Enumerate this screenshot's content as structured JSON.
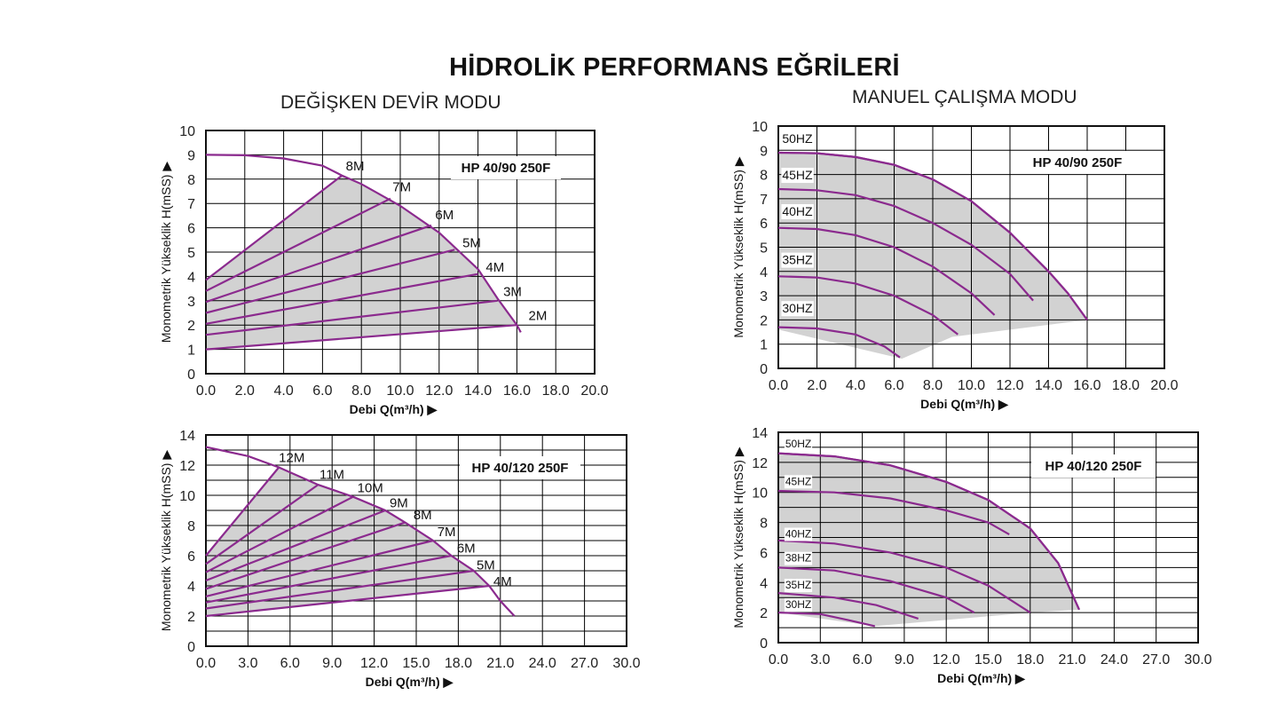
{
  "page": {
    "title": "HİDROLİK PERFORMANS EĞRİLERİ",
    "left_mode_title": "DEĞİŞKEN DEVİR MODU",
    "right_mode_title": "MANUEL ÇALIŞMA MODU"
  },
  "colors": {
    "curve": "#8b2a8e",
    "fill": "#d2d2d2",
    "grid": "#000000"
  },
  "chart_data": [
    {
      "id": "c1",
      "type": "line",
      "model": "HP 40/90 250F",
      "xlabel": "Debi Q(m³/h) ▶",
      "ylabel": "Monometrik Yükseklik H(mSS) ▶",
      "xlim": [
        0,
        20
      ],
      "ylim": [
        0,
        10
      ],
      "xticks": [
        0,
        2,
        4,
        6,
        8,
        10,
        12,
        14,
        16,
        18,
        20
      ],
      "xtick_decimals": 1,
      "yticks": [
        0,
        1,
        2,
        3,
        4,
        5,
        6,
        7,
        8,
        9,
        10
      ],
      "ytick_decimals": 0,
      "grid": true,
      "envelope": [
        [
          0,
          9
        ],
        [
          2,
          8.98
        ],
        [
          4,
          8.85
        ],
        [
          6,
          8.55
        ],
        [
          7,
          8.15
        ],
        [
          8,
          7.8
        ],
        [
          10,
          6.9
        ],
        [
          12,
          5.8
        ],
        [
          14,
          4.3
        ],
        [
          15,
          3.1
        ],
        [
          16,
          2
        ],
        [
          16.2,
          1.7
        ]
      ],
      "region": [
        [
          0,
          1
        ],
        [
          16,
          2
        ],
        [
          15,
          3.1
        ],
        [
          14,
          4.3
        ],
        [
          12,
          5.8
        ],
        [
          10,
          6.9
        ],
        [
          8,
          7.8
        ],
        [
          7,
          8.15
        ],
        [
          0,
          3.85
        ]
      ],
      "series": [
        {
          "name": "8M",
          "values": [
            [
              0,
              3.85
            ],
            [
              7,
              8.15
            ]
          ]
        },
        {
          "name": "7M",
          "values": [
            [
              0,
              3.4
            ],
            [
              9.5,
              7.2
            ]
          ]
        },
        {
          "name": "6M",
          "values": [
            [
              0,
              2.95
            ],
            [
              11.6,
              6.1
            ]
          ]
        },
        {
          "name": "5M",
          "values": [
            [
              0,
              2.5
            ],
            [
              12.8,
              5.1
            ]
          ]
        },
        {
          "name": "4M",
          "values": [
            [
              0,
              2.05
            ],
            [
              14,
              4.1
            ]
          ]
        },
        {
          "name": "3M",
          "values": [
            [
              0,
              1.6
            ],
            [
              15,
              3
            ]
          ]
        },
        {
          "name": "2M",
          "values": [
            [
              0,
              1
            ],
            [
              16,
              2
            ]
          ]
        }
      ],
      "series_labels": [
        {
          "text": "8M",
          "x": 7.2,
          "y": 8.35
        },
        {
          "text": "7M",
          "x": 9.6,
          "y": 7.5
        },
        {
          "text": "6M",
          "x": 11.8,
          "y": 6.35
        },
        {
          "text": "5M",
          "x": 13.2,
          "y": 5.2
        },
        {
          "text": "4M",
          "x": 14.4,
          "y": 4.2
        },
        {
          "text": "3M",
          "x": 15.3,
          "y": 3.2
        },
        {
          "text": "2M",
          "x": 16.6,
          "y": 2.2
        }
      ]
    },
    {
      "id": "c2",
      "type": "line",
      "model": "HP 40/90 250F",
      "xlabel": "Debi Q(m³/h) ▶",
      "ylabel": "Monometrik Yükseklik H(mSS) ▶",
      "xlim": [
        0,
        20
      ],
      "ylim": [
        0,
        10
      ],
      "xticks": [
        0,
        2,
        4,
        6,
        8,
        10,
        12,
        14,
        16,
        18,
        20
      ],
      "xtick_decimals": 1,
      "yticks": [
        0,
        1,
        2,
        3,
        4,
        5,
        6,
        7,
        8,
        9,
        10
      ],
      "ytick_decimals": 0,
      "grid": true,
      "envelope": [
        [
          0,
          8.9
        ],
        [
          2,
          8.88
        ],
        [
          4,
          8.72
        ],
        [
          6,
          8.4
        ],
        [
          8,
          7.8
        ],
        [
          10,
          6.9
        ],
        [
          12,
          5.6
        ],
        [
          14,
          4
        ],
        [
          15,
          3.1
        ],
        [
          16,
          2
        ]
      ],
      "region": [
        [
          0,
          8.9
        ],
        [
          2,
          8.88
        ],
        [
          4,
          8.72
        ],
        [
          6,
          8.4
        ],
        [
          8,
          7.8
        ],
        [
          10,
          6.9
        ],
        [
          12,
          5.6
        ],
        [
          14,
          4
        ],
        [
          15,
          3.1
        ],
        [
          16,
          2
        ],
        [
          9,
          1.3
        ],
        [
          6.4,
          0.4
        ],
        [
          0,
          1.6
        ]
      ],
      "series": [
        {
          "name": "50HZ",
          "values": [
            [
              0,
              8.9
            ],
            [
              2,
              8.88
            ],
            [
              4,
              8.72
            ],
            [
              6,
              8.4
            ],
            [
              8,
              7.8
            ],
            [
              10,
              6.9
            ],
            [
              12,
              5.6
            ],
            [
              14,
              4
            ],
            [
              15,
              3.1
            ],
            [
              16,
              2
            ]
          ]
        },
        {
          "name": "45HZ",
          "values": [
            [
              0,
              7.4
            ],
            [
              2,
              7.35
            ],
            [
              4,
              7.15
            ],
            [
              6,
              6.7
            ],
            [
              8,
              6
            ],
            [
              10,
              5.1
            ],
            [
              12,
              3.9
            ],
            [
              13.2,
              2.8
            ]
          ]
        },
        {
          "name": "40HZ",
          "values": [
            [
              0,
              5.8
            ],
            [
              2,
              5.75
            ],
            [
              4,
              5.5
            ],
            [
              6,
              5
            ],
            [
              8,
              4.2
            ],
            [
              10,
              3.1
            ],
            [
              11.2,
              2.2
            ]
          ]
        },
        {
          "name": "35HZ",
          "values": [
            [
              0,
              3.8
            ],
            [
              2,
              3.75
            ],
            [
              4,
              3.5
            ],
            [
              6,
              3
            ],
            [
              8,
              2.2
            ],
            [
              9.3,
              1.4
            ]
          ]
        },
        {
          "name": "30HZ",
          "values": [
            [
              0,
              1.7
            ],
            [
              2,
              1.65
            ],
            [
              4,
              1.4
            ],
            [
              5.5,
              0.9
            ],
            [
              6.3,
              0.45
            ]
          ]
        }
      ],
      "series_labels": [
        {
          "text": "50HZ",
          "x": 0.2,
          "y": 9.3
        },
        {
          "text": "45HZ",
          "x": 0.2,
          "y": 7.8
        },
        {
          "text": "40HZ",
          "x": 0.2,
          "y": 6.3
        },
        {
          "text": "35HZ",
          "x": 0.2,
          "y": 4.3
        },
        {
          "text": "30HZ",
          "x": 0.2,
          "y": 2.3
        }
      ]
    },
    {
      "id": "c3",
      "type": "line",
      "model": "HP 40/120 250F",
      "xlabel": "Debi Q(m³/h) ▶",
      "ylabel": "Monometrik Yükseklik H(mSS) ▶",
      "xlim": [
        0,
        30
      ],
      "ylim": [
        0,
        14
      ],
      "xticks": [
        0,
        3,
        6,
        9,
        12,
        15,
        18,
        21,
        24,
        27,
        30
      ],
      "xtick_decimals": 1,
      "yticks": [
        0,
        2,
        4,
        6,
        8,
        10,
        12,
        14
      ],
      "ytick_decimals": 0,
      "grid": true,
      "envelope": [
        [
          0,
          13.2
        ],
        [
          3,
          12.6
        ],
        [
          5.2,
          11.85
        ],
        [
          8,
          10.7
        ],
        [
          10.5,
          9.9
        ],
        [
          12.8,
          9
        ],
        [
          14.2,
          8.2
        ],
        [
          16.2,
          7
        ],
        [
          17.5,
          6
        ],
        [
          19.1,
          5
        ],
        [
          20.2,
          4
        ],
        [
          21,
          3
        ],
        [
          22,
          2
        ]
      ],
      "region": [
        [
          0,
          2
        ],
        [
          20.2,
          4
        ],
        [
          19.1,
          5
        ],
        [
          17.5,
          6
        ],
        [
          16.2,
          7
        ],
        [
          14.2,
          8.2
        ],
        [
          12.8,
          9
        ],
        [
          10.5,
          9.9
        ],
        [
          8,
          10.7
        ],
        [
          5.2,
          11.85
        ],
        [
          0,
          6
        ]
      ],
      "series": [
        {
          "name": "12M",
          "values": [
            [
              0,
              6
            ],
            [
              5.2,
              11.85
            ]
          ]
        },
        {
          "name": "11M",
          "values": [
            [
              0,
              5.45
            ],
            [
              8,
              10.7
            ]
          ]
        },
        {
          "name": "10M",
          "values": [
            [
              0,
              4.9
            ],
            [
              10.5,
              9.9
            ]
          ]
        },
        {
          "name": "9M",
          "values": [
            [
              0,
              4.35
            ],
            [
              12.8,
              9
            ]
          ]
        },
        {
          "name": "8M",
          "values": [
            [
              0,
              3.8
            ],
            [
              14.2,
              8.2
            ]
          ]
        },
        {
          "name": "7M",
          "values": [
            [
              0,
              3.3
            ],
            [
              16.2,
              7
            ]
          ]
        },
        {
          "name": "6M",
          "values": [
            [
              0,
              2.9
            ],
            [
              17.5,
              6
            ]
          ]
        },
        {
          "name": "5M",
          "values": [
            [
              0,
              2.5
            ],
            [
              19.1,
              5
            ]
          ]
        },
        {
          "name": "4M",
          "values": [
            [
              0,
              2
            ],
            [
              20.2,
              4
            ]
          ]
        }
      ],
      "series_labels": [
        {
          "text": "12M",
          "x": 5.2,
          "y": 12.2
        },
        {
          "text": "11M",
          "x": 8.1,
          "y": 11.1
        },
        {
          "text": "10M",
          "x": 10.8,
          "y": 10.2
        },
        {
          "text": "9M",
          "x": 13.1,
          "y": 9.2
        },
        {
          "text": "8M",
          "x": 14.8,
          "y": 8.4
        },
        {
          "text": "7M",
          "x": 16.5,
          "y": 7.3
        },
        {
          "text": "6M",
          "x": 17.9,
          "y": 6.2
        },
        {
          "text": "5M",
          "x": 19.3,
          "y": 5.1
        },
        {
          "text": "4M",
          "x": 20.5,
          "y": 4
        }
      ]
    },
    {
      "id": "c4",
      "type": "line",
      "model": "HP 40/120 250F",
      "xlabel": "Debi Q(m³/h) ▶",
      "ylabel": "Monometrik Yükseklik H(mSS) ▶",
      "xlim": [
        0,
        30
      ],
      "ylim": [
        0,
        14
      ],
      "xticks": [
        0,
        3,
        6,
        9,
        12,
        15,
        18,
        21,
        24,
        27,
        30
      ],
      "xtick_decimals": 1,
      "yticks": [
        0,
        2,
        4,
        6,
        8,
        10,
        12,
        14
      ],
      "ytick_decimals": 0,
      "grid": true,
      "envelope": [
        [
          0,
          12.6
        ],
        [
          4,
          12.4
        ],
        [
          8,
          11.8
        ],
        [
          12,
          10.7
        ],
        [
          15,
          9.5
        ],
        [
          18,
          7.6
        ],
        [
          20,
          5.3
        ],
        [
          21.5,
          2.2
        ]
      ],
      "region": [
        [
          0,
          12.6
        ],
        [
          4,
          12.4
        ],
        [
          8,
          11.8
        ],
        [
          12,
          10.7
        ],
        [
          15,
          9.5
        ],
        [
          18,
          7.6
        ],
        [
          20,
          5.3
        ],
        [
          21.5,
          2.2
        ],
        [
          18,
          2
        ],
        [
          6.9,
          1.1
        ],
        [
          0,
          2
        ]
      ],
      "series": [
        {
          "name": "50HZ",
          "values": [
            [
              0,
              12.6
            ],
            [
              4,
              12.4
            ],
            [
              8,
              11.8
            ],
            [
              12,
              10.7
            ],
            [
              15,
              9.5
            ],
            [
              18,
              7.6
            ],
            [
              20,
              5.3
            ],
            [
              21.5,
              2.2
            ]
          ]
        },
        {
          "name": "45HZ",
          "values": [
            [
              0,
              10.1
            ],
            [
              4,
              10
            ],
            [
              8,
              9.6
            ],
            [
              12,
              8.8
            ],
            [
              15,
              8
            ],
            [
              16.5,
              7.2
            ]
          ]
        },
        {
          "name": "40HZ",
          "values": [
            [
              0,
              6.8
            ],
            [
              4,
              6.6
            ],
            [
              8,
              6
            ],
            [
              12,
              5
            ],
            [
              15,
              3.8
            ],
            [
              18,
              2
            ]
          ]
        },
        {
          "name": "38HZ",
          "values": [
            [
              0,
              5
            ],
            [
              4,
              4.8
            ],
            [
              8,
              4.1
            ],
            [
              12,
              3
            ],
            [
              14,
              2
            ]
          ]
        },
        {
          "name": "35HZ",
          "values": [
            [
              0,
              3.3
            ],
            [
              4,
              3
            ],
            [
              7,
              2.5
            ],
            [
              10,
              1.6
            ]
          ]
        },
        {
          "name": "30HZ",
          "values": [
            [
              0,
              2
            ],
            [
              3,
              1.9
            ],
            [
              5,
              1.5
            ],
            [
              6.9,
              1.1
            ]
          ]
        }
      ],
      "series_labels": [
        {
          "text": "50HZ",
          "x": 0.5,
          "y": 13
        },
        {
          "text": "45HZ",
          "x": 0.5,
          "y": 10.5
        },
        {
          "text": "40HZ",
          "x": 0.5,
          "y": 7
        },
        {
          "text": "38HZ",
          "x": 0.5,
          "y": 5.4
        },
        {
          "text": "35HZ",
          "x": 0.5,
          "y": 3.6
        },
        {
          "text": "30HZ",
          "x": 0.5,
          "y": 2.3
        }
      ]
    }
  ]
}
